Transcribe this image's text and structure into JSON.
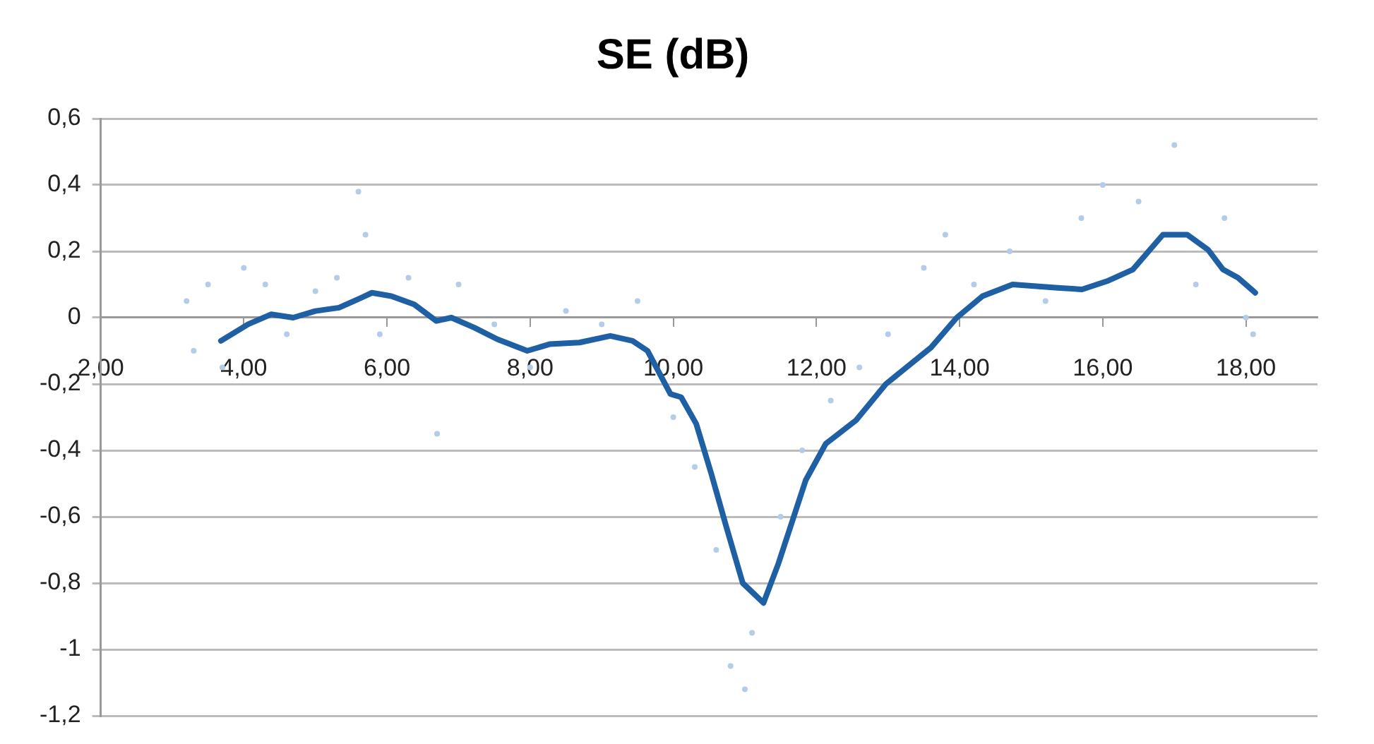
{
  "chart_data": {
    "type": "line",
    "title": "SE (dB)",
    "xlim": [
      2,
      19
    ],
    "ylim": [
      -1.2,
      0.6
    ],
    "xticks": [
      {
        "value": 2,
        "label": "2,00"
      },
      {
        "value": 4,
        "label": "4,00"
      },
      {
        "value": 6,
        "label": "6,00"
      },
      {
        "value": 8,
        "label": "8,00"
      },
      {
        "value": 10,
        "label": "10,00"
      },
      {
        "value": 12,
        "label": "12,00"
      },
      {
        "value": 14,
        "label": "14,00"
      },
      {
        "value": 16,
        "label": "16,00"
      },
      {
        "value": 18,
        "label": "18,00"
      }
    ],
    "yticks": [
      {
        "value": -1.2,
        "label": "-1,2"
      },
      {
        "value": -1,
        "label": "-1"
      },
      {
        "value": -0.8,
        "label": "-0,8"
      },
      {
        "value": -0.6,
        "label": "-0,6"
      },
      {
        "value": -0.4,
        "label": "-0,4"
      },
      {
        "value": -0.2,
        "label": "-0,2"
      },
      0,
      {
        "value": 0.2,
        "label": "0,2"
      },
      {
        "value": 0.4,
        "label": "0,4"
      },
      {
        "value": 0.6,
        "label": "0,6"
      }
    ],
    "grid": "y",
    "legend": false,
    "series": [
      {
        "type": "scatter",
        "marker": "circle",
        "color": "#b4cce8",
        "x": [
          3.2,
          3.3,
          3.5,
          3.7,
          4.0,
          4.3,
          4.6,
          5.0,
          5.3,
          5.6,
          5.7,
          5.9,
          6.3,
          6.7,
          7.0,
          7.5,
          8.0,
          8.5,
          9.0,
          9.5,
          10.0,
          10.3,
          10.6,
          10.8,
          11.0,
          11.1,
          11.5,
          11.8,
          12.2,
          12.6,
          13.0,
          13.5,
          13.8,
          14.2,
          14.7,
          15.2,
          15.7,
          16.0,
          16.5,
          17.0,
          17.3,
          17.7,
          18.0,
          18.1
        ],
        "values": [
          0.05,
          -0.1,
          0.1,
          -0.15,
          0.15,
          0.1,
          -0.05,
          0.08,
          0.12,
          0.38,
          0.25,
          -0.05,
          0.12,
          -0.35,
          0.1,
          -0.02,
          -0.15,
          0.02,
          -0.02,
          0.05,
          -0.3,
          -0.45,
          -0.7,
          -1.05,
          -1.12,
          -0.95,
          -0.6,
          -0.4,
          -0.25,
          -0.15,
          -0.05,
          0.15,
          0.25,
          0.1,
          0.2,
          0.05,
          0.3,
          0.4,
          0.35,
          0.52,
          0.1,
          0.3,
          0.0,
          -0.05
        ]
      },
      {
        "type": "line",
        "marker": "none",
        "color": "#1f5fa3",
        "x": [
          3.68,
          4.06,
          4.38,
          4.69,
          5.0,
          5.33,
          5.64,
          5.79,
          6.06,
          6.38,
          6.69,
          6.9,
          7.22,
          7.54,
          7.96,
          8.27,
          8.69,
          9.12,
          9.43,
          9.64,
          9.96,
          10.11,
          10.32,
          10.53,
          10.74,
          10.97,
          11.26,
          11.47,
          11.85,
          12.13,
          12.55,
          12.97,
          13.6,
          13.96,
          14.32,
          14.74,
          15.37,
          15.71,
          16.06,
          16.42,
          16.84,
          17.18,
          17.47,
          17.68,
          17.89,
          18.13
        ],
        "values": [
          -0.07,
          -0.02,
          0.01,
          0.0,
          0.02,
          0.03,
          0.06,
          0.075,
          0.065,
          0.04,
          -0.01,
          0.0,
          -0.03,
          -0.065,
          -0.1,
          -0.08,
          -0.075,
          -0.055,
          -0.07,
          -0.1,
          -0.23,
          -0.24,
          -0.32,
          -0.47,
          -0.63,
          -0.8,
          -0.86,
          -0.74,
          -0.49,
          -0.38,
          -0.31,
          -0.2,
          -0.09,
          0.0,
          0.065,
          0.1,
          0.09,
          0.085,
          0.11,
          0.145,
          0.25,
          0.25,
          0.205,
          0.145,
          0.12,
          0.075
        ]
      }
    ]
  }
}
